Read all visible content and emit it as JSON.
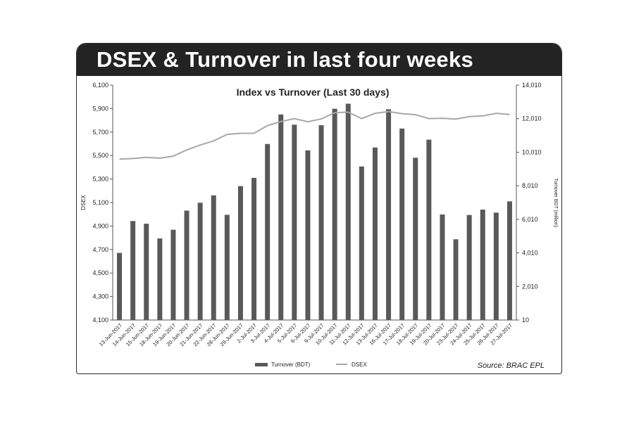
{
  "banner": {
    "title": "DSEX & Turnover in last four weeks"
  },
  "chart_data": {
    "type": "bar",
    "title": "Index vs Turnover (Last 30 days)",
    "ylabel": "DSEX",
    "y2label": "Turnover BDT (million)",
    "source": "Source: BRAC EPL",
    "ylim": [
      4100,
      6100
    ],
    "yticks": [
      "4,100",
      "4,300",
      "4,500",
      "4,700",
      "4,900",
      "5,100",
      "5,300",
      "5,500",
      "5,700",
      "5,900",
      "6,100"
    ],
    "y2lim": [
      10,
      14010
    ],
    "y2ticks": [
      "10",
      "2,010",
      "4,010",
      "6,010",
      "8,010",
      "10,010",
      "12,010",
      "14,010"
    ],
    "grid": false,
    "legend_position": "bottom",
    "categories": [
      "13-Jun-2017",
      "14-Jun-2017",
      "15-Jun-2017",
      "18-Jun-2017",
      "19-Jun-2017",
      "20-Jun-2017",
      "21-Jun-2017",
      "22-Jun-2017",
      "28-Jun-2017",
      "29-Jun-2017",
      "2-Jul-2017",
      "3-Jul-2017",
      "4-Jul-2017",
      "5-Jul-2017",
      "6-Jul-2017",
      "9-Jul-2017",
      "10-Jul-2017",
      "11-Jul-2017",
      "12-Jul-2017",
      "13-Jul-2017",
      "16-Jul-2017",
      "17-Jul-2017",
      "18-Jul-2017",
      "19-Jul-2017",
      "20-Jul-2017",
      "23-Jul-2017",
      "24-Jul-2017",
      "25-Jul-2017",
      "26-Jul-2017",
      "27-Jul-2017"
    ],
    "series": [
      {
        "name": "Turnover (BDT)",
        "type": "bar",
        "axis": "right",
        "color": "#595959",
        "values": [
          4010,
          5910,
          5750,
          4870,
          5390,
          6530,
          7000,
          7440,
          6280,
          7990,
          8480,
          10500,
          12260,
          11650,
          10120,
          11620,
          12600,
          12900,
          9160,
          10290,
          12570,
          11420,
          9680,
          10760,
          6300,
          4820,
          6270,
          6590,
          6410,
          7080
        ]
      },
      {
        "name": "DSEX",
        "type": "line",
        "axis": "left",
        "color": "#a8a8a8",
        "values": [
          5470,
          5475,
          5485,
          5478,
          5495,
          5548,
          5590,
          5625,
          5680,
          5690,
          5690,
          5755,
          5790,
          5815,
          5788,
          5812,
          5865,
          5870,
          5815,
          5860,
          5875,
          5857,
          5848,
          5815,
          5818,
          5810,
          5832,
          5838,
          5860,
          5850
        ]
      }
    ]
  }
}
